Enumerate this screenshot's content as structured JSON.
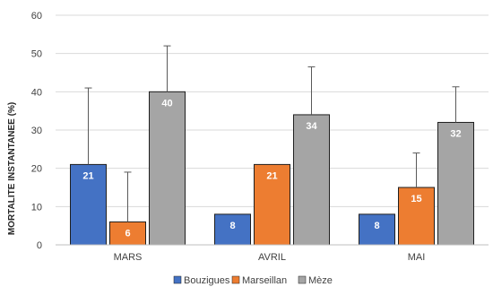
{
  "chart_data": {
    "type": "bar",
    "ylabel": "MORTALITE INSTANTANEE (%)",
    "ylim": [
      0,
      60
    ],
    "yticks": [
      0,
      10,
      20,
      30,
      40,
      50,
      60
    ],
    "grid": true,
    "legend_position": "bottom",
    "categories": [
      "MARS",
      "AVRIL",
      "MAI"
    ],
    "series": [
      {
        "name": "Bouzigues",
        "color": "#4472c4",
        "values": [
          21,
          8,
          8
        ],
        "error_upper": [
          41,
          8,
          8
        ],
        "labels": [
          "21",
          "8",
          "8"
        ]
      },
      {
        "name": "Marseillan",
        "color": "#ed7d31",
        "values": [
          6,
          21,
          15
        ],
        "error_upper": [
          19,
          21,
          24
        ],
        "labels": [
          "6",
          "21",
          "15"
        ]
      },
      {
        "name": "Mèze",
        "color": "#a5a5a5",
        "values": [
          40,
          34,
          32
        ],
        "error_upper": [
          52,
          46.5,
          41.3
        ],
        "labels": [
          "40",
          "34",
          "32"
        ]
      }
    ]
  }
}
